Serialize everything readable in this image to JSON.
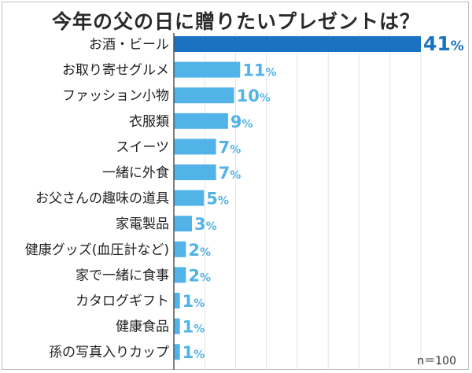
{
  "chart_data": {
    "type": "bar",
    "orientation": "horizontal",
    "title": "今年の父の日に贈りたいプレゼントは？",
    "categories": [
      "お酒・ビール",
      "お取り寄せグルメ",
      "ファッション小物",
      "衣服類",
      "スイーツ",
      "一緒に外食",
      "お父さんの趣味の道具",
      "家電製品",
      "健康グッズ(血圧計など)",
      "家で一緒に食事",
      "カタログギフト",
      "健康食品",
      "孫の写真入りカップ"
    ],
    "values": [
      41,
      11,
      10,
      9,
      7,
      7,
      5,
      3,
      2,
      2,
      1,
      1,
      1
    ],
    "value_suffix": "%",
    "xlim": [
      0,
      41
    ],
    "grid": true,
    "highlight_index": 0,
    "colors": {
      "highlight": "#1a73c1",
      "bar": "#52b3e9",
      "grid": "#e3e3e3",
      "axis": "#555555"
    }
  },
  "sample_size": "n＝100"
}
